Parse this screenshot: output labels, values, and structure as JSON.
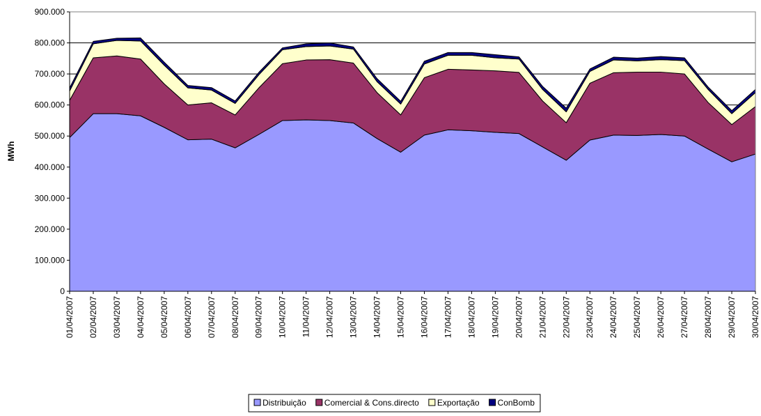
{
  "chart_data": {
    "type": "stacked_area",
    "y_label": "MWh",
    "categories": [
      "01/04/2007",
      "02/04/2007",
      "03/04/2007",
      "04/04/2007",
      "05/04/2007",
      "06/04/2007",
      "07/04/2007",
      "08/04/2007",
      "09/04/2007",
      "10/04/2007",
      "11/04/2007",
      "12/04/2007",
      "13/04/2007",
      "14/04/2007",
      "15/04/2007",
      "16/04/2007",
      "17/04/2007",
      "18/04/2007",
      "19/04/2007",
      "20/04/2007",
      "21/04/2007",
      "22/04/2007",
      "23/04/2007",
      "24/04/2007",
      "25/04/2007",
      "26/04/2007",
      "27/04/2007",
      "28/04/2007",
      "29/04/2007",
      "30/04/2007"
    ],
    "series": [
      {
        "name": "Distribuição",
        "color": "#9999ff",
        "values": [
          495000,
          572000,
          572000,
          565000,
          528000,
          488000,
          490000,
          462000,
          505000,
          550000,
          552000,
          550000,
          542000,
          492000,
          448000,
          503000,
          520000,
          517000,
          512000,
          508000,
          465000,
          422000,
          487000,
          503000,
          502000,
          505000,
          500000,
          458000,
          417000,
          442000
        ]
      },
      {
        "name": "Comercial & Cons.directo",
        "color": "#993366",
        "values": [
          120000,
          180000,
          186000,
          183000,
          140000,
          112000,
          117000,
          106000,
          150000,
          183000,
          193000,
          196000,
          193000,
          148000,
          120000,
          185000,
          195000,
          196000,
          198000,
          197000,
          148000,
          121000,
          183000,
          201000,
          204000,
          201000,
          200000,
          150000,
          120000,
          153000
        ]
      },
      {
        "name": "Exportação",
        "color": "#ffffcc",
        "values": [
          30000,
          45000,
          50000,
          58000,
          60000,
          55000,
          41000,
          37000,
          42000,
          45000,
          43000,
          44000,
          45000,
          35000,
          35000,
          44000,
          45000,
          47000,
          42000,
          43000,
          37000,
          35000,
          38000,
          41000,
          36000,
          40000,
          43000,
          42000,
          35000,
          45000
        ]
      },
      {
        "name": "ConBomb",
        "color": "#000080",
        "values": [
          10000,
          8000,
          7000,
          10000,
          10000,
          8000,
          8000,
          8000,
          8000,
          6000,
          9000,
          10000,
          7000,
          10000,
          9000,
          9000,
          9000,
          9000,
          10000,
          7000,
          10000,
          12000,
          8000,
          9000,
          9000,
          10000,
          9000,
          8000,
          10000,
          10000
        ]
      }
    ],
    "ylim": [
      0,
      900000
    ],
    "yticks": [
      0,
      {
        "value": 100000,
        "label": "100.000"
      },
      {
        "value": 200000,
        "label": "200.000"
      },
      {
        "value": 300000,
        "label": "300.000"
      },
      {
        "value": 400000,
        "label": "400.000"
      },
      {
        "value": 500000,
        "label": "500.000"
      },
      {
        "value": 600000,
        "label": "600.000"
      },
      {
        "value": 700000,
        "label": "700.000"
      },
      {
        "value": 800000,
        "label": "800.000"
      },
      {
        "value": 900000,
        "label": "900.000"
      }
    ],
    "grid": true,
    "legend": "bottom"
  }
}
